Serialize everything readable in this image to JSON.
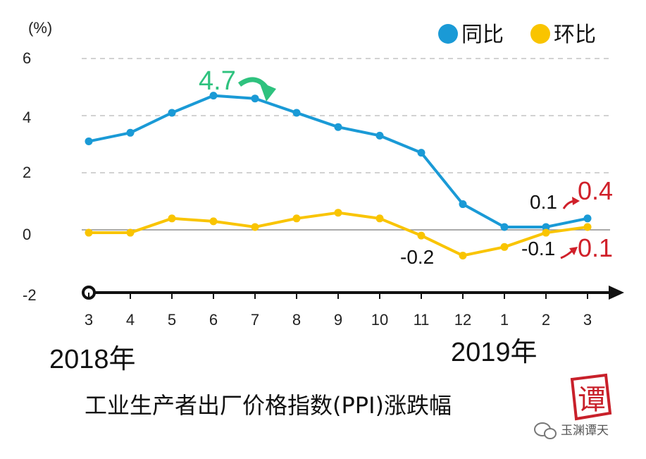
{
  "chart_data": {
    "type": "line",
    "title": "工业生产者出厂价格指数(PPI)涨跌幅",
    "y_unit": "(%)",
    "ylim": [
      -2,
      6
    ],
    "yticks": [
      "6",
      "4",
      "2",
      "0",
      "-2"
    ],
    "categories": [
      "3",
      "4",
      "5",
      "6",
      "7",
      "8",
      "9",
      "10",
      "11",
      "12",
      "1",
      "2",
      "3"
    ],
    "year_labels": [
      "2018年",
      "2019年"
    ],
    "grid": true,
    "legend_position": "top-right",
    "series": [
      {
        "name": "同比",
        "color": "#1a9ad6",
        "values": [
          3.1,
          3.4,
          4.1,
          4.7,
          4.6,
          4.1,
          3.6,
          3.3,
          2.7,
          0.9,
          0.1,
          0.1,
          0.4
        ]
      },
      {
        "name": "环比",
        "color": "#f9c400",
        "values": [
          -0.1,
          -0.1,
          0.4,
          0.3,
          0.1,
          0.4,
          0.6,
          0.4,
          -0.2,
          -0.9,
          -0.6,
          -0.1,
          0.1
        ]
      }
    ],
    "annotations": [
      {
        "text": "4.7",
        "color": "#2ec27e",
        "series": 0,
        "index": 3
      },
      {
        "text": "0.1",
        "color": "#111111",
        "series": 0,
        "index": 11
      },
      {
        "text": "0.4",
        "color": "#d0202a",
        "series": 0,
        "index": 12
      },
      {
        "text": "-0.2",
        "color": "#111111",
        "series": 1,
        "index": 8
      },
      {
        "text": "-0.1",
        "color": "#111111",
        "series": 1,
        "index": 11
      },
      {
        "text": "0.1",
        "color": "#d0202a",
        "series": 1,
        "index": 12
      }
    ]
  },
  "watermark": {
    "text": "玉渊谭天",
    "seal_text": "谭",
    "icon": "wechat-icon"
  }
}
